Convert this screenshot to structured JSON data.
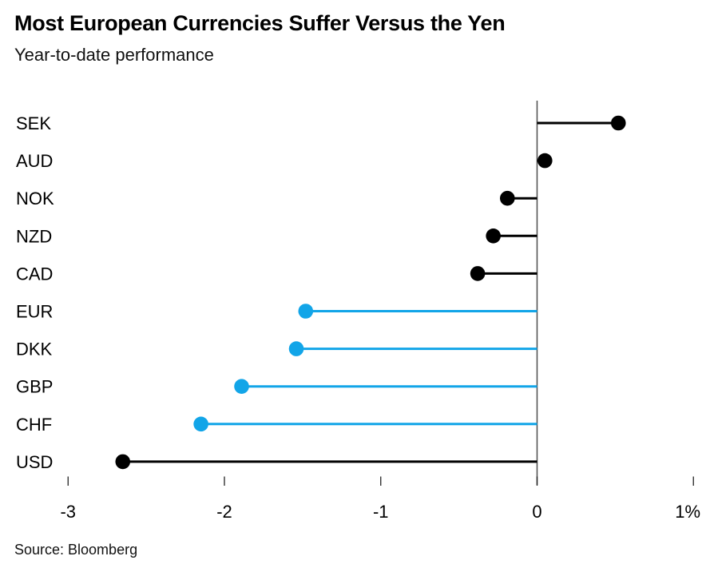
{
  "header": {
    "title": "Most European Currencies Suffer Versus the Yen",
    "subtitle": "Year-to-date performance"
  },
  "footer": {
    "source": "Source: Bloomberg"
  },
  "colors": {
    "highlight_blue": "#12a5e8",
    "default_black": "#000000",
    "axis_line_gray": "#4d4d4d",
    "tick_gray": "#222222",
    "text_black": "#000000"
  },
  "chart_data": {
    "type": "lollipop",
    "orientation": "horizontal",
    "title": "Most European Currencies Suffer Versus the Yen",
    "subtitle": "Year-to-date performance",
    "xlabel": "",
    "ylabel": "",
    "unit": "%",
    "categories": [
      "SEK",
      "AUD",
      "NOK",
      "NZD",
      "CAD",
      "EUR",
      "DKK",
      "GBP",
      "CHF",
      "USD"
    ],
    "values": [
      0.52,
      0.05,
      -0.19,
      -0.28,
      -0.38,
      -1.48,
      -1.54,
      -1.89,
      -2.15,
      -2.65
    ],
    "highlighted_categories": [
      "EUR",
      "DKK",
      "GBP",
      "CHF"
    ],
    "x_ticks": [
      -3,
      -2,
      -1,
      0,
      1
    ],
    "x_tick_labels": [
      "-3",
      "-2",
      "-1",
      "0",
      "1%"
    ],
    "xlim": [
      -3.4,
      1.05
    ],
    "grid": false,
    "legend": false,
    "zero_baseline": true,
    "source": "Source: Bloomberg"
  }
}
